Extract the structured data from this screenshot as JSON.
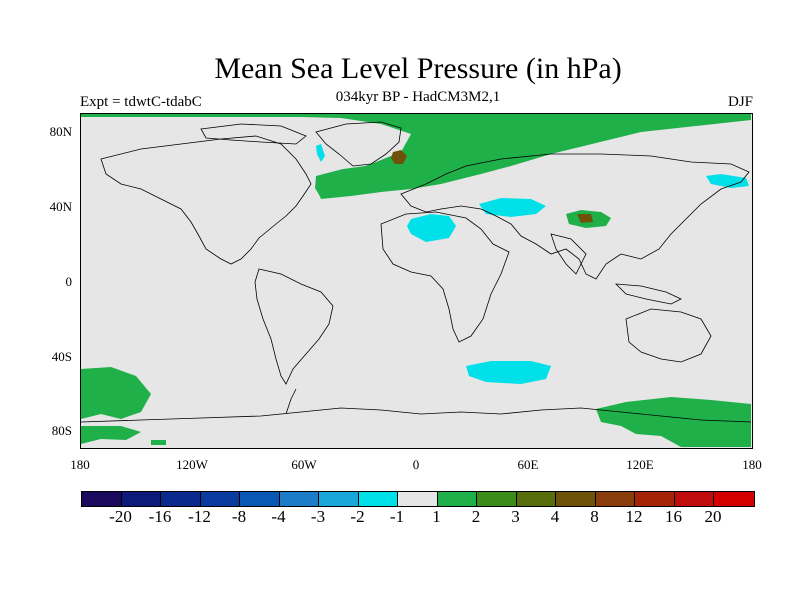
{
  "title": "Mean Sea Level Pressure (in hPa)",
  "subtitle": "034kyr BP - HadCM3M2,1",
  "left_label": "Expt = tdwtC-tdabC",
  "right_label": "DJF",
  "lat_ticks": [
    "80N",
    "40N",
    "0",
    "40S",
    "80S"
  ],
  "lon_ticks": [
    "180",
    "120W",
    "60W",
    "0",
    "60E",
    "120E",
    "180"
  ],
  "colorbar": {
    "colors": [
      "#1a0a5e",
      "#0d1a7a",
      "#0b2a8e",
      "#0a3ca0",
      "#0a58b5",
      "#1c7cc8",
      "#1aa6d8",
      "#00e0e8",
      "#e6e6e6",
      "#1fb04a",
      "#3c8c1a",
      "#586e0c",
      "#6e520a",
      "#8a3c0a",
      "#a52408",
      "#c00c0c",
      "#d40000"
    ],
    "labels": [
      "-20",
      "-16",
      "-12",
      "-8",
      "-4",
      "-3",
      "-2",
      "-1",
      "1",
      "2",
      "3",
      "4",
      "8",
      "12",
      "16",
      "20"
    ]
  },
  "map_colors": {
    "background": "#e6e6e6",
    "positive": "#1fb04a",
    "strong_positive": "#6e520a",
    "negative": "#00e0e8"
  }
}
